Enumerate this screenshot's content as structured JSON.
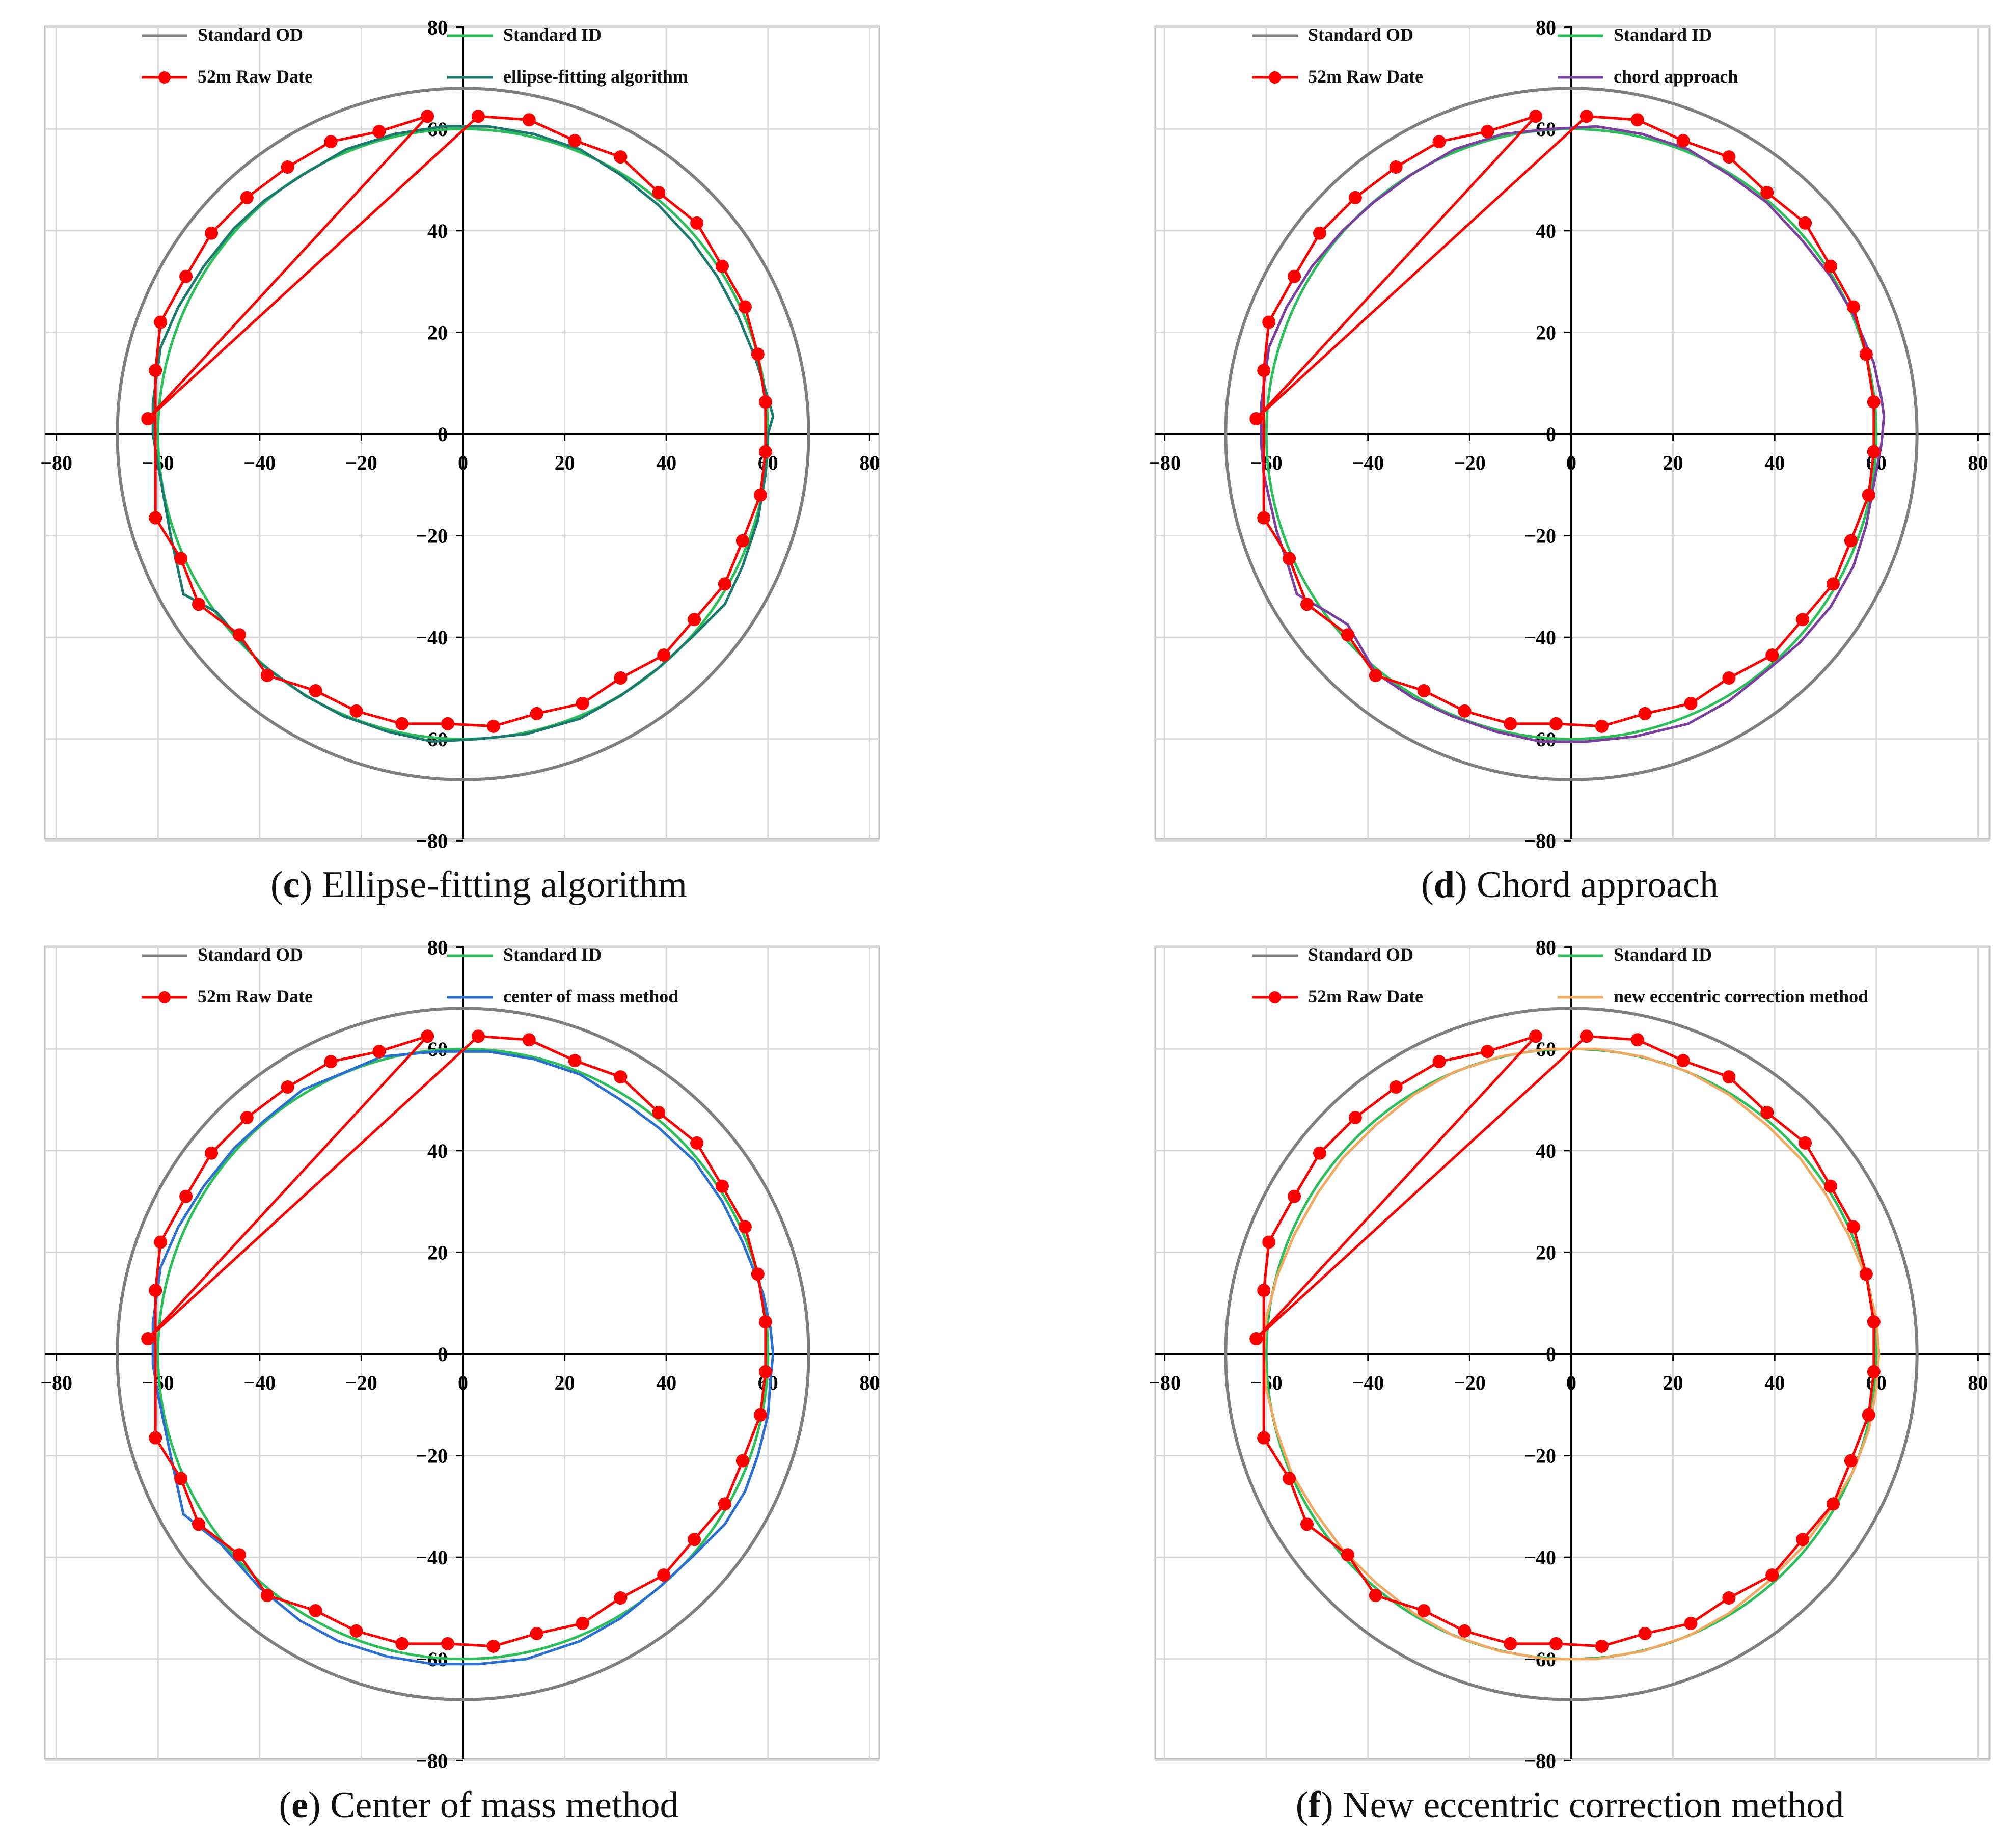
{
  "figure": {
    "colors": {
      "standard_od": "#7f7f7f",
      "standard_id": "#2bbf5a",
      "raw": "#ff0000",
      "ellipse": "#1a7a6e",
      "chord": "#7b3fa0",
      "center_mass": "#2a6fd1",
      "new_method": "#f2a860",
      "grid": "#d9d9d9",
      "frame": "#bfbfbf"
    }
  },
  "chart_data": [
    {
      "panel": "c",
      "type": "line",
      "caption_letter": "c",
      "caption_text": " Ellipse-fitting algorithm",
      "xlim": [
        -80,
        80
      ],
      "ylim": [
        -80,
        80
      ],
      "xticks": [
        -80,
        -60,
        -40,
        -20,
        0,
        20,
        40,
        60,
        80
      ],
      "yticks": [
        80,
        60,
        40,
        20,
        0,
        -20,
        -40,
        -60,
        -80
      ],
      "tick_labels": {
        "x": [
          "−80",
          "−60",
          "−40",
          "−20",
          "0",
          "20",
          "40",
          "60",
          "80"
        ],
        "y": [
          "80",
          "60",
          "40",
          "20",
          "0",
          "−20",
          "−40",
          "−60",
          "−80"
        ]
      },
      "grid": true,
      "legend": [
        "Standard OD",
        "Standard ID",
        "52m Raw Date",
        "ellipse-fitting algorithm"
      ],
      "series": [
        {
          "name": "Standard OD",
          "kind": "circle",
          "radius": 68
        },
        {
          "name": "Standard ID",
          "kind": "circle",
          "radius": 60
        },
        {
          "name": "52m Raw Date",
          "kind": "raw"
        },
        {
          "name": "ellipse-fitting algorithm",
          "kind": "method"
        }
      ]
    },
    {
      "panel": "d",
      "type": "line",
      "caption_letter": "d",
      "caption_text": " Chord approach",
      "xlim": [
        -80,
        80
      ],
      "ylim": [
        -80,
        80
      ],
      "xticks": [
        -80,
        -60,
        -40,
        -20,
        0,
        20,
        40,
        60,
        80
      ],
      "yticks": [
        80,
        60,
        40,
        20,
        0,
        -20,
        -40,
        -60,
        -80
      ],
      "tick_labels": {
        "x": [
          "−80",
          "−60",
          "−40",
          "−20",
          "0",
          "20",
          "40",
          "60",
          "80"
        ],
        "y": [
          "80",
          "60",
          "40",
          "20",
          "0",
          "−20",
          "−40",
          "−60",
          "−80"
        ]
      },
      "grid": true,
      "legend": [
        "Standard OD",
        "Standard ID",
        "52m Raw Date",
        "chord approach"
      ],
      "series": [
        {
          "name": "Standard OD",
          "kind": "circle",
          "radius": 68
        },
        {
          "name": "Standard ID",
          "kind": "circle",
          "radius": 60
        },
        {
          "name": "52m Raw Date",
          "kind": "raw"
        },
        {
          "name": "chord approach",
          "kind": "method"
        }
      ]
    },
    {
      "panel": "e",
      "type": "line",
      "caption_letter": "e",
      "caption_text": " Center of mass method",
      "xlim": [
        -80,
        80
      ],
      "ylim": [
        -80,
        80
      ],
      "xticks": [
        -80,
        -60,
        -40,
        -20,
        0,
        20,
        40,
        60,
        80
      ],
      "yticks": [
        80,
        60,
        40,
        20,
        0,
        -20,
        -40,
        -60,
        -80
      ],
      "tick_labels": {
        "x": [
          "−80",
          "−60",
          "−40",
          "−20",
          "0",
          "20",
          "40",
          "60",
          "80"
        ],
        "y": [
          "80",
          "60",
          "40",
          "20",
          "0",
          "−20",
          "−40",
          "−60",
          "−80"
        ]
      },
      "grid": true,
      "legend": [
        "Standard OD",
        "Standard ID",
        "52m Raw Date",
        "center of mass method"
      ],
      "series": [
        {
          "name": "Standard OD",
          "kind": "circle",
          "radius": 68
        },
        {
          "name": "Standard ID",
          "kind": "circle",
          "radius": 60
        },
        {
          "name": "52m Raw Date",
          "kind": "raw"
        },
        {
          "name": "center of mass method",
          "kind": "method"
        }
      ]
    },
    {
      "panel": "f",
      "type": "line",
      "caption_letter": "f",
      "caption_text": " New eccentric correction method",
      "xlim": [
        -80,
        80
      ],
      "ylim": [
        -80,
        80
      ],
      "xticks": [
        -80,
        -60,
        -40,
        -20,
        0,
        20,
        40,
        60,
        80
      ],
      "yticks": [
        80,
        60,
        40,
        20,
        0,
        -20,
        -40,
        -60,
        -80
      ],
      "tick_labels": {
        "x": [
          "−80",
          "−60",
          "−40",
          "−20",
          "0",
          "20",
          "40",
          "60",
          "80"
        ],
        "y": [
          "80",
          "60",
          "40",
          "20",
          "0",
          "−20",
          "−40",
          "−60",
          "−80"
        ]
      },
      "grid": true,
      "legend": [
        "Standard OD",
        "Standard ID",
        "52m Raw Date",
        "new eccentric correction method"
      ],
      "series": [
        {
          "name": "Standard OD",
          "kind": "circle",
          "radius": 68
        },
        {
          "name": "Standard ID",
          "kind": "circle",
          "radius": 60
        },
        {
          "name": "52m Raw Date",
          "kind": "raw"
        },
        {
          "name": "new eccentric correction method",
          "kind": "method"
        }
      ]
    }
  ],
  "raw_data_points": [
    [
      3,
      62.5
    ],
    [
      13,
      61.8
    ],
    [
      22,
      57.7
    ],
    [
      31,
      54.5
    ],
    [
      38.5,
      47.5
    ],
    [
      46,
      41.5
    ],
    [
      51,
      33
    ],
    [
      55.5,
      25
    ],
    [
      58,
      15.7
    ],
    [
      59.5,
      6.3
    ],
    [
      59.5,
      -3.5
    ],
    [
      58.5,
      -12
    ],
    [
      55,
      -21
    ],
    [
      51.5,
      -29.5
    ],
    [
      45.5,
      -36.5
    ],
    [
      39.5,
      -43.5
    ],
    [
      31,
      -48
    ],
    [
      23.5,
      -53
    ],
    [
      14.5,
      -55
    ],
    [
      6,
      -57.5
    ],
    [
      -3,
      -57
    ],
    [
      -12,
      -57
    ],
    [
      -21,
      -54.5
    ],
    [
      -29,
      -50.5
    ],
    [
      -38.5,
      -47.5
    ],
    [
      -44,
      -39.5
    ],
    [
      -52,
      -33.5
    ],
    [
      -55.5,
      -24.5
    ],
    [
      -60.5,
      -16.5
    ],
    [
      -60.5,
      12.5
    ],
    [
      -59.5,
      22
    ],
    [
      -54.5,
      31
    ],
    [
      -49.5,
      39.5
    ],
    [
      -42.5,
      46.5
    ],
    [
      -34.5,
      52.5
    ],
    [
      -26,
      57.5
    ],
    [
      -16.5,
      59.5
    ],
    [
      -7,
      62.5
    ],
    [
      -62,
      3
    ],
    [
      3,
      62.5
    ]
  ],
  "ellipse_fit_points": [
    [
      5,
      60.5
    ],
    [
      14,
      59
    ],
    [
      23,
      56
    ],
    [
      31,
      51
    ],
    [
      38.5,
      45
    ],
    [
      45,
      38
    ],
    [
      50,
      31
    ],
    [
      54,
      23.5
    ],
    [
      57.5,
      15
    ],
    [
      60,
      7
    ],
    [
      61,
      3.5
    ],
    [
      60,
      0
    ],
    [
      59.5,
      -8
    ],
    [
      58,
      -17
    ],
    [
      55,
      -26
    ],
    [
      51.5,
      -33.5
    ],
    [
      45,
      -40
    ],
    [
      38.5,
      -46
    ],
    [
      31,
      -51.5
    ],
    [
      23,
      -56
    ],
    [
      12.5,
      -59
    ],
    [
      3,
      -60
    ],
    [
      -6,
      -60.5
    ],
    [
      -15,
      -58.5
    ],
    [
      -23.5,
      -55.5
    ],
    [
      -31,
      -51.5
    ],
    [
      -40,
      -45
    ],
    [
      -48.5,
      -35
    ],
    [
      -55,
      -31.5
    ],
    [
      -57.5,
      -20
    ],
    [
      -60,
      -6
    ],
    [
      -61,
      0
    ],
    [
      -61,
      6
    ],
    [
      -59.5,
      17
    ],
    [
      -56,
      25
    ],
    [
      -51,
      33
    ],
    [
      -45,
      40.5
    ],
    [
      -39,
      46
    ],
    [
      -31.5,
      51
    ],
    [
      -23,
      56
    ],
    [
      -13.5,
      59
    ],
    [
      -4,
      60.5
    ],
    [
      5,
      60.5
    ]
  ],
  "chord_points": [
    [
      5,
      60.5
    ],
    [
      14,
      59
    ],
    [
      23,
      56
    ],
    [
      31,
      51
    ],
    [
      38.5,
      45.5
    ],
    [
      45.5,
      38
    ],
    [
      51,
      31
    ],
    [
      55.5,
      23.5
    ],
    [
      59.5,
      14
    ],
    [
      61,
      7
    ],
    [
      61.5,
      3.5
    ],
    [
      61,
      -2
    ],
    [
      59.5,
      -10
    ],
    [
      58,
      -18
    ],
    [
      55.5,
      -26
    ],
    [
      51,
      -34
    ],
    [
      45,
      -41
    ],
    [
      38.5,
      -46.5
    ],
    [
      31,
      -52.5
    ],
    [
      23,
      -57
    ],
    [
      12.5,
      -59.5
    ],
    [
      3,
      -60.5
    ],
    [
      -6,
      -60.5
    ],
    [
      -15,
      -58.5
    ],
    [
      -23.5,
      -55.5
    ],
    [
      -31,
      -52
    ],
    [
      -38.5,
      -47
    ],
    [
      -44,
      -37.5
    ],
    [
      -48,
      -35
    ],
    [
      -54,
      -31.5
    ],
    [
      -55.5,
      -26.5
    ],
    [
      -58,
      -19
    ],
    [
      -60.5,
      -8
    ],
    [
      -61,
      -2
    ],
    [
      -61,
      6
    ],
    [
      -59.5,
      17
    ],
    [
      -56,
      25
    ],
    [
      -51,
      33
    ],
    [
      -45,
      40
    ],
    [
      -39,
      45.5
    ],
    [
      -31.5,
      51
    ],
    [
      -23,
      56
    ],
    [
      -13.5,
      59
    ],
    [
      -4,
      60
    ],
    [
      5,
      60.5
    ]
  ],
  "center_mass_points": [
    [
      5,
      59.5
    ],
    [
      14,
      58
    ],
    [
      23,
      55
    ],
    [
      31,
      50
    ],
    [
      38.5,
      44.5
    ],
    [
      45.5,
      38
    ],
    [
      51,
      30
    ],
    [
      55,
      22
    ],
    [
      59,
      12
    ],
    [
      60.5,
      5
    ],
    [
      61,
      0
    ],
    [
      60.5,
      -5
    ],
    [
      60,
      -12
    ],
    [
      58,
      -20
    ],
    [
      55.5,
      -27
    ],
    [
      51.5,
      -33.5
    ],
    [
      45,
      -40
    ],
    [
      38.5,
      -46
    ],
    [
      31,
      -52
    ],
    [
      23,
      -56.5
    ],
    [
      12.5,
      -60
    ],
    [
      3,
      -61
    ],
    [
      -6,
      -61
    ],
    [
      -15,
      -59.5
    ],
    [
      -24.5,
      -56.5
    ],
    [
      -32,
      -52.5
    ],
    [
      -40,
      -46
    ],
    [
      -47.5,
      -37.5
    ],
    [
      -55,
      -31.5
    ],
    [
      -57.5,
      -20
    ],
    [
      -60,
      -8
    ],
    [
      -61,
      -2
    ],
    [
      -61,
      6
    ],
    [
      -59.5,
      17
    ],
    [
      -56,
      25
    ],
    [
      -51,
      33
    ],
    [
      -45,
      40.5
    ],
    [
      -39,
      46
    ],
    [
      -31.5,
      52
    ],
    [
      -23,
      55.5
    ],
    [
      -16,
      58.5
    ],
    [
      -5,
      59.5
    ],
    [
      5,
      59.5
    ]
  ],
  "new_method_points": [
    [
      5,
      60
    ],
    [
      14,
      58.5
    ],
    [
      23,
      55.5
    ],
    [
      31,
      51
    ],
    [
      38.5,
      45
    ],
    [
      45,
      38.5
    ],
    [
      50,
      31.5
    ],
    [
      54.5,
      23.5
    ],
    [
      58,
      15
    ],
    [
      60,
      7
    ],
    [
      60.5,
      0
    ],
    [
      60,
      -7
    ],
    [
      58.5,
      -15
    ],
    [
      55.5,
      -23
    ],
    [
      51,
      -30.5
    ],
    [
      45.5,
      -38
    ],
    [
      38.5,
      -45
    ],
    [
      31,
      -51
    ],
    [
      23,
      -55.5
    ],
    [
      14,
      -58.5
    ],
    [
      5,
      -60
    ],
    [
      -5,
      -60
    ],
    [
      -14,
      -58.5
    ],
    [
      -23,
      -55.5
    ],
    [
      -31,
      -51
    ],
    [
      -38.5,
      -45
    ],
    [
      -45,
      -38.5
    ],
    [
      -50.5,
      -31
    ],
    [
      -55,
      -23.5
    ],
    [
      -58,
      -15
    ],
    [
      -60,
      -7
    ],
    [
      -60.5,
      0
    ],
    [
      -60,
      7
    ],
    [
      -58,
      15
    ],
    [
      -54.5,
      23.5
    ],
    [
      -50,
      31.5
    ],
    [
      -45,
      38.5
    ],
    [
      -38.5,
      45
    ],
    [
      -31,
      51
    ],
    [
      -23,
      55.5
    ],
    [
      -14,
      58.5
    ],
    [
      -5,
      60
    ],
    [
      5,
      60
    ]
  ]
}
